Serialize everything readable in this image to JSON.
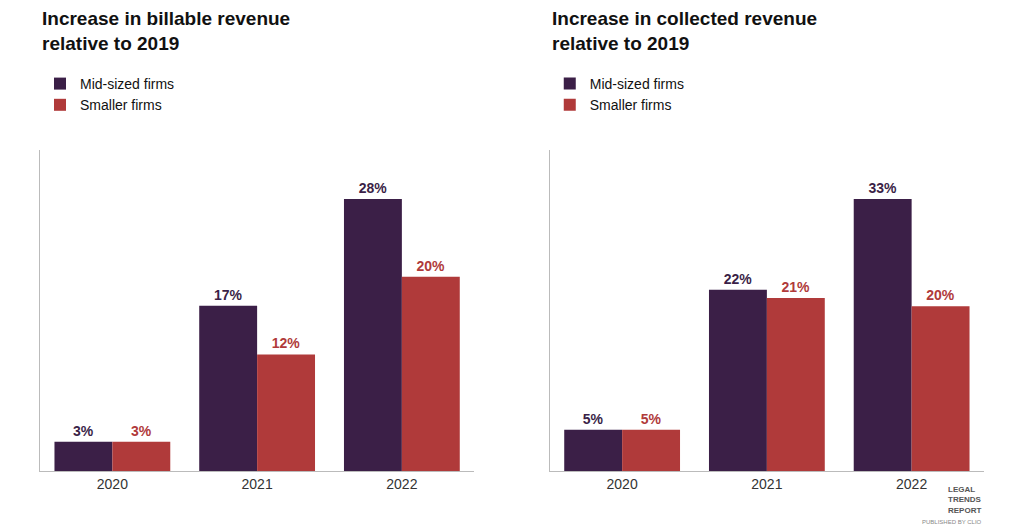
{
  "chart_data": [
    {
      "type": "bar",
      "title": "Increase in billable revenue\nrelative to 2019",
      "categories": [
        "2020",
        "2021",
        "2022"
      ],
      "series": [
        {
          "name": "Mid-sized firms",
          "color": "#3b1f47",
          "values": [
            3,
            17,
            28
          ],
          "value_labels": [
            "3%",
            "17%",
            "28%"
          ]
        },
        {
          "name": "Smaller firms",
          "color": "#b03a3a",
          "values": [
            3,
            12,
            20
          ],
          "value_labels": [
            "3%",
            "12%",
            "20%"
          ]
        }
      ],
      "ylim": [
        0,
        33.04
      ],
      "grid": false,
      "legend": "top left",
      "data_labels": true,
      "tick_labels": "x"
    },
    {
      "type": "bar",
      "title": "Increase in collected revenue\nrelative to 2019",
      "categories": [
        "2020",
        "2021",
        "2022"
      ],
      "series": [
        {
          "name": "Mid-sized firms",
          "color": "#3b1f47",
          "values": [
            5,
            22,
            33
          ],
          "value_labels": [
            "5%",
            "22%",
            "33%"
          ]
        },
        {
          "name": "Smaller firms",
          "color": "#b03a3a",
          "values": [
            5,
            21,
            20
          ],
          "value_labels": [
            "5%",
            "21%",
            "20%"
          ]
        }
      ],
      "ylim": [
        0,
        38.94
      ],
      "grid": false,
      "legend": "top left",
      "data_labels": true,
      "tick_labels": "x",
      "annotations": [
        "LEGAL\nTRENDS\nREPORT",
        "PUBLISHED BY CLIO"
      ]
    }
  ]
}
